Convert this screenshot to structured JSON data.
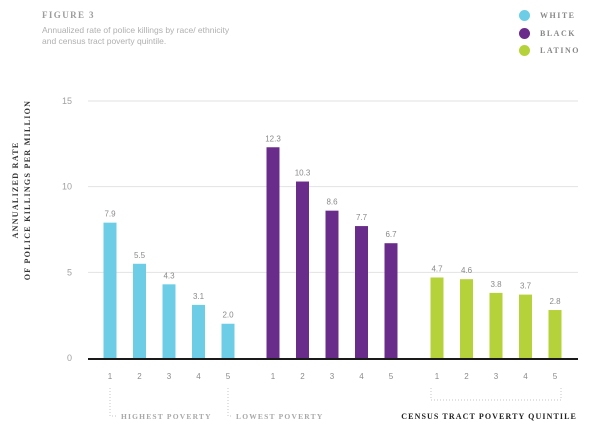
{
  "header": {
    "figure_label": "FIGURE 3",
    "subtitle": "Annualized rate of police killings by race/ ethnicity and census tract poverty quintile."
  },
  "legend": [
    {
      "label": "WHITE",
      "color": "#6dcde6"
    },
    {
      "label": "BLACK",
      "color": "#6a2c8a"
    },
    {
      "label": "LATINO",
      "color": "#b6d23a"
    }
  ],
  "chart_data": {
    "type": "bar",
    "ylabel": "ANNUALIZED RATE OF POLICE KILLINGS PER MILLION",
    "ylabel_lines": [
      "ANNUALIZED RATE",
      "OF POLICE KILLINGS PER MILLION"
    ],
    "xlabel": "CENSUS TRACT POVERTY QUINTILE",
    "ylim": [
      0,
      15
    ],
    "yticks": [
      0,
      5,
      10,
      15
    ],
    "grid": true,
    "categories": [
      "1",
      "2",
      "3",
      "4",
      "5"
    ],
    "series": [
      {
        "name": "WHITE",
        "color": "#6dcde6",
        "values": [
          7.9,
          5.5,
          4.3,
          3.1,
          2.0
        ]
      },
      {
        "name": "BLACK",
        "color": "#6a2c8a",
        "values": [
          12.3,
          10.3,
          8.6,
          7.7,
          6.7
        ]
      },
      {
        "name": "LATINO",
        "color": "#b6d23a",
        "values": [
          4.7,
          4.6,
          3.8,
          3.7,
          2.8
        ]
      }
    ],
    "annotations": {
      "highest": "HIGHEST POVERTY",
      "lowest": "LOWEST POVERTY"
    }
  }
}
